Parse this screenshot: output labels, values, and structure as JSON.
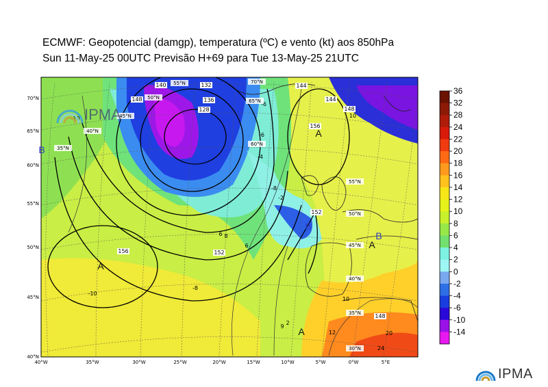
{
  "title": {
    "line1": "ECMWF:  Geopotencial (damgp), temperatura (ºC) e vento (kt) aos 850hPa",
    "line2": "Sun 11-May-25 00UTC Previsão H+69 para Tue 13-May-25 21UTC"
  },
  "logo": {
    "text": "IPMA",
    "icon": "ipma-arc-logo-icon"
  },
  "map": {
    "lon_labels": [
      "40°W",
      "35°W",
      "30°W",
      "25°W",
      "20°W",
      "15°W",
      "10°W",
      "5°W",
      "0°W",
      "5°E"
    ],
    "lat_labels": [
      "70°N",
      "65°N",
      "60°N",
      "55°N",
      "50°N",
      "45°N",
      "40°N"
    ],
    "graticule_labels": [
      "35°N",
      "40°N",
      "45°N",
      "50°N",
      "55°N",
      "60°N",
      "65°N",
      "70°N",
      "55°N",
      "50°N",
      "45°N",
      "40°N",
      "35°N",
      "30°N"
    ],
    "pressure_centers": [
      {
        "label": "B",
        "kind": "low"
      },
      {
        "label": "A",
        "kind": "high"
      },
      {
        "label": "A",
        "kind": "high"
      },
      {
        "label": "B",
        "kind": "low"
      },
      {
        "label": "A",
        "kind": "high"
      },
      {
        "label": "B",
        "kind": "low"
      },
      {
        "label": "A",
        "kind": "high"
      }
    ],
    "geopotential_labels": [
      "136",
      "132",
      "128",
      "144",
      "148",
      "140",
      "152",
      "156",
      "152",
      "148",
      "156",
      "144",
      "148"
    ],
    "temperature_labels": [
      "-10",
      "-10",
      "-8",
      "-6",
      "-2",
      "2",
      "6",
      "8",
      "10",
      "12",
      "20",
      "24",
      "-4",
      "-6",
      "-8",
      "6",
      "9",
      "10"
    ]
  },
  "colorbar": {
    "ticks": [
      "36",
      "32",
      "28",
      "24",
      "22",
      "20",
      "18",
      "16",
      "14",
      "12",
      "10",
      "8",
      "6",
      "4",
      "2",
      "0",
      "-2",
      "-4",
      "-6",
      "-10",
      "-14"
    ],
    "colors": [
      "#6b1200",
      "#8c1a05",
      "#b01c0a",
      "#d81a0a",
      "#f03a10",
      "#ff6a14",
      "#ff9a1e",
      "#ffc21e",
      "#f7e617",
      "#e6f21a",
      "#c8f02c",
      "#98e848",
      "#72e06e",
      "#7df2e2",
      "#9ef6f4",
      "#7aa8f0",
      "#2f6fe6",
      "#1a3de0",
      "#2a08d8",
      "#9a12e8",
      "#e818f0"
    ]
  }
}
